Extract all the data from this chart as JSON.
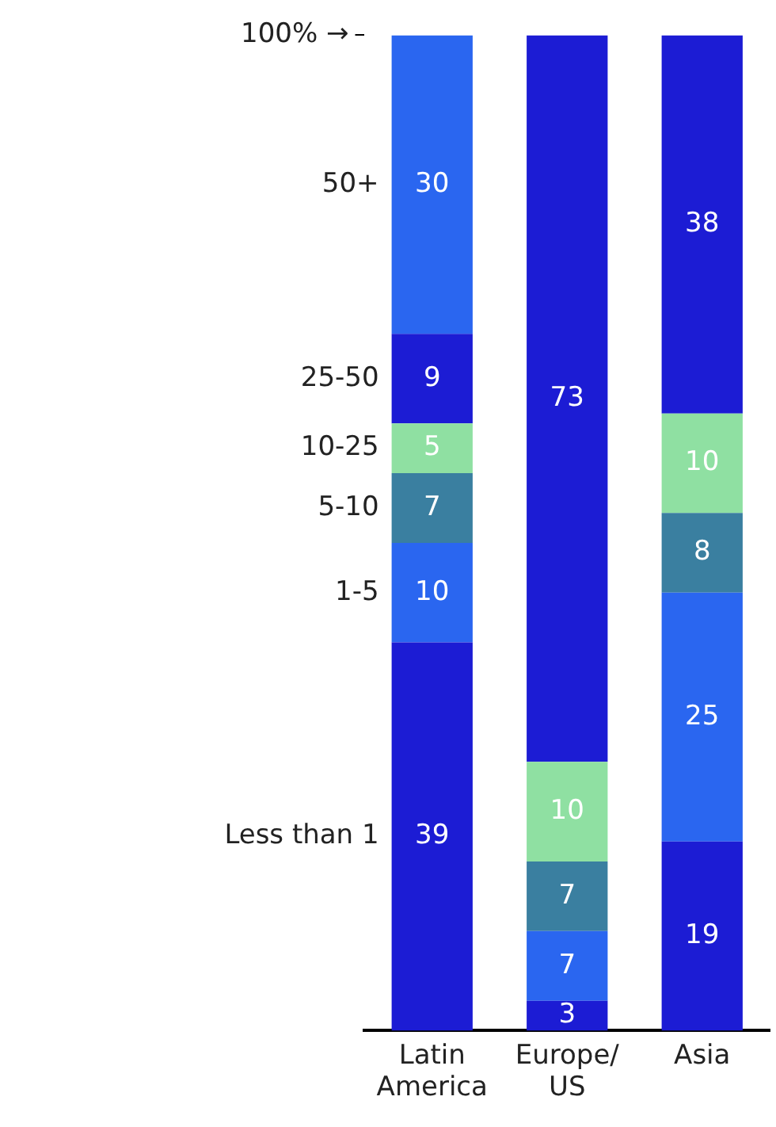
{
  "chart_data": {
    "type": "bar",
    "stacked": true,
    "categories": [
      "Latin\nAmerica",
      "Europe/\nUS",
      "Asia"
    ],
    "series": [
      {
        "name": "Less than 1",
        "color": "#1c1cd4",
        "values": [
          39,
          3,
          19
        ]
      },
      {
        "name": "1-5",
        "color": "#2a66f0",
        "values": [
          10,
          7,
          25
        ]
      },
      {
        "name": "5-10",
        "color": "#3a7fa0",
        "values": [
          7,
          7,
          8
        ]
      },
      {
        "name": "10-25",
        "color": "#8fe0a2",
        "values": [
          5,
          10,
          10
        ]
      },
      {
        "name": "25-50",
        "color": "#1c1cd4",
        "values": [
          9,
          73,
          38
        ]
      },
      {
        "name": "50+",
        "color": "#2a66f0",
        "values": [
          30,
          null,
          null
        ]
      }
    ],
    "ylim": [
      0,
      100
    ],
    "yticks": [
      {
        "value": 100,
        "label": "100% →"
      }
    ],
    "data_labels": true,
    "grid": false,
    "legend": false
  }
}
